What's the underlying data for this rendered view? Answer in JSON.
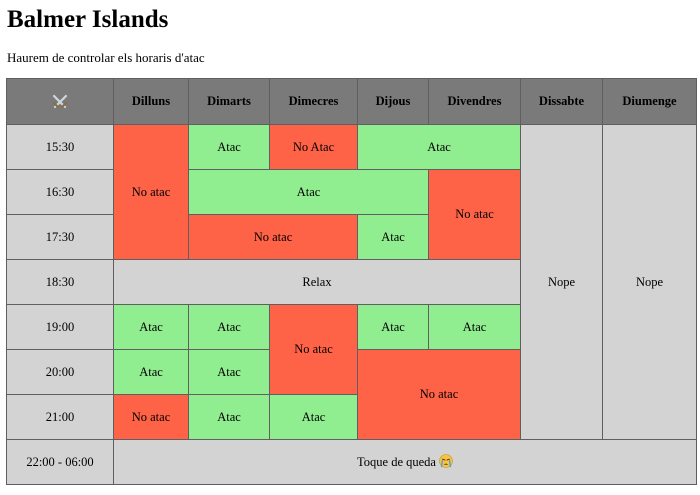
{
  "page": {
    "title": "Balmer Islands",
    "subtitle": "Haurem de controlar els horaris d'atac"
  },
  "table": {
    "corner_icon": "crossed-swords-icon",
    "days": [
      "Dilluns",
      "Dimarts",
      "Dimecres",
      "Dijous",
      "Divendres",
      "Dissabte",
      "Diumenge"
    ],
    "times": [
      "15:30",
      "16:30",
      "17:30",
      "18:30",
      "19:00",
      "20:00",
      "21:00",
      "22:00 - 06:00"
    ],
    "cells": {
      "r1": {
        "dimarts": "Atac",
        "dimecres": "No Atac",
        "dijous_divendres": "Atac",
        "dissabte": "Nope",
        "diumenge": "Nope",
        "dilluns": "No atac"
      },
      "r2": {
        "dimarts_dijous": "Atac",
        "divendres": "No atac"
      },
      "r3": {
        "dimarts_dimecres": "No atac",
        "dijous": "Atac"
      },
      "r4": {
        "relax": "Relax"
      },
      "r5": {
        "dilluns": "Atac",
        "dimarts": "Atac",
        "dimecres": "No atac",
        "dijous": "Atac",
        "divendres": "Atac"
      },
      "r6": {
        "dilluns": "Atac",
        "dimarts": "Atac",
        "dijous_divendres": "No atac"
      },
      "r7": {
        "dilluns": "No atac",
        "dimarts": "Atac",
        "dimecres": "Atac"
      },
      "r8": {
        "curfew": "Toque de queda",
        "curfew_icon": "crying-face-emoji-icon"
      }
    },
    "colors": {
      "atac": "#90ee90",
      "no_atac": "#ff6347",
      "neutral": "#d3d3d3",
      "header": "#7a7a7a"
    }
  }
}
